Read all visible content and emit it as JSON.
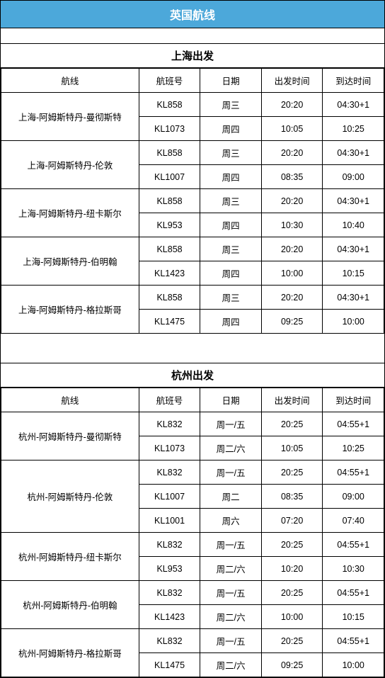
{
  "colors": {
    "header_bg": "#4ca8da",
    "header_text": "#ffffff",
    "border": "#000000",
    "cell_bg": "#ffffff",
    "cell_text": "#000000"
  },
  "main_title": "英国航线",
  "columns": [
    "航线",
    "航班号",
    "日期",
    "出发时间",
    "到达时间"
  ],
  "sections": [
    {
      "title": "上海出发",
      "routes": [
        {
          "route": "上海-阿姆斯特丹-曼彻斯特",
          "flights": [
            {
              "no": "KL858",
              "day": "周三",
              "dep": "20:20",
              "arr": "04:30+1"
            },
            {
              "no": "KL1073",
              "day": "周四",
              "dep": "10:05",
              "arr": "10:25"
            }
          ]
        },
        {
          "route": "上海-阿姆斯特丹-伦敦",
          "flights": [
            {
              "no": "KL858",
              "day": "周三",
              "dep": "20:20",
              "arr": "04:30+1"
            },
            {
              "no": "KL1007",
              "day": "周四",
              "dep": "08:35",
              "arr": "09:00"
            }
          ]
        },
        {
          "route": "上海-阿姆斯特丹-纽卡斯尔",
          "flights": [
            {
              "no": "KL858",
              "day": "周三",
              "dep": "20:20",
              "arr": "04:30+1"
            },
            {
              "no": "KL953",
              "day": "周四",
              "dep": "10:30",
              "arr": "10:40"
            }
          ]
        },
        {
          "route": "上海-阿姆斯特丹-伯明翰",
          "flights": [
            {
              "no": "KL858",
              "day": "周三",
              "dep": "20:20",
              "arr": "04:30+1"
            },
            {
              "no": "KL1423",
              "day": "周四",
              "dep": "10:00",
              "arr": "10:15"
            }
          ]
        },
        {
          "route": "上海-阿姆斯特丹-格拉斯哥",
          "flights": [
            {
              "no": "KL858",
              "day": "周三",
              "dep": "20:20",
              "arr": "04:30+1"
            },
            {
              "no": "KL1475",
              "day": "周四",
              "dep": "09:25",
              "arr": "10:00"
            }
          ]
        }
      ]
    },
    {
      "title": "杭州出发",
      "routes": [
        {
          "route": "杭州-阿姆斯特丹-曼彻斯特",
          "flights": [
            {
              "no": "KL832",
              "day": "周一/五",
              "dep": "20:25",
              "arr": "04:55+1"
            },
            {
              "no": "KL1073",
              "day": "周二/六",
              "dep": "10:05",
              "arr": "10:25"
            }
          ]
        },
        {
          "route": "杭州-阿姆斯特丹-伦敦",
          "flights": [
            {
              "no": "KL832",
              "day": "周一/五",
              "dep": "20:25",
              "arr": "04:55+1"
            },
            {
              "no": "KL1007",
              "day": "周二",
              "dep": "08:35",
              "arr": "09:00"
            },
            {
              "no": "KL1001",
              "day": "周六",
              "dep": "07:20",
              "arr": "07:40"
            }
          ]
        },
        {
          "route": "杭州-阿姆斯特丹-纽卡斯尔",
          "flights": [
            {
              "no": "KL832",
              "day": "周一/五",
              "dep": "20:25",
              "arr": "04:55+1"
            },
            {
              "no": "KL953",
              "day": "周二/六",
              "dep": "10:20",
              "arr": "10:30"
            }
          ]
        },
        {
          "route": "杭州-阿姆斯特丹-伯明翰",
          "flights": [
            {
              "no": "KL832",
              "day": "周一/五",
              "dep": "20:25",
              "arr": "04:55+1"
            },
            {
              "no": "KL1423",
              "day": "周二/六",
              "dep": "10:00",
              "arr": "10:15"
            }
          ]
        },
        {
          "route": "杭州-阿姆斯特丹-格拉斯哥",
          "flights": [
            {
              "no": "KL832",
              "day": "周一/五",
              "dep": "20:25",
              "arr": "04:55+1"
            },
            {
              "no": "KL1475",
              "day": "周二/六",
              "dep": "09:25",
              "arr": "10:00"
            }
          ]
        }
      ]
    }
  ]
}
